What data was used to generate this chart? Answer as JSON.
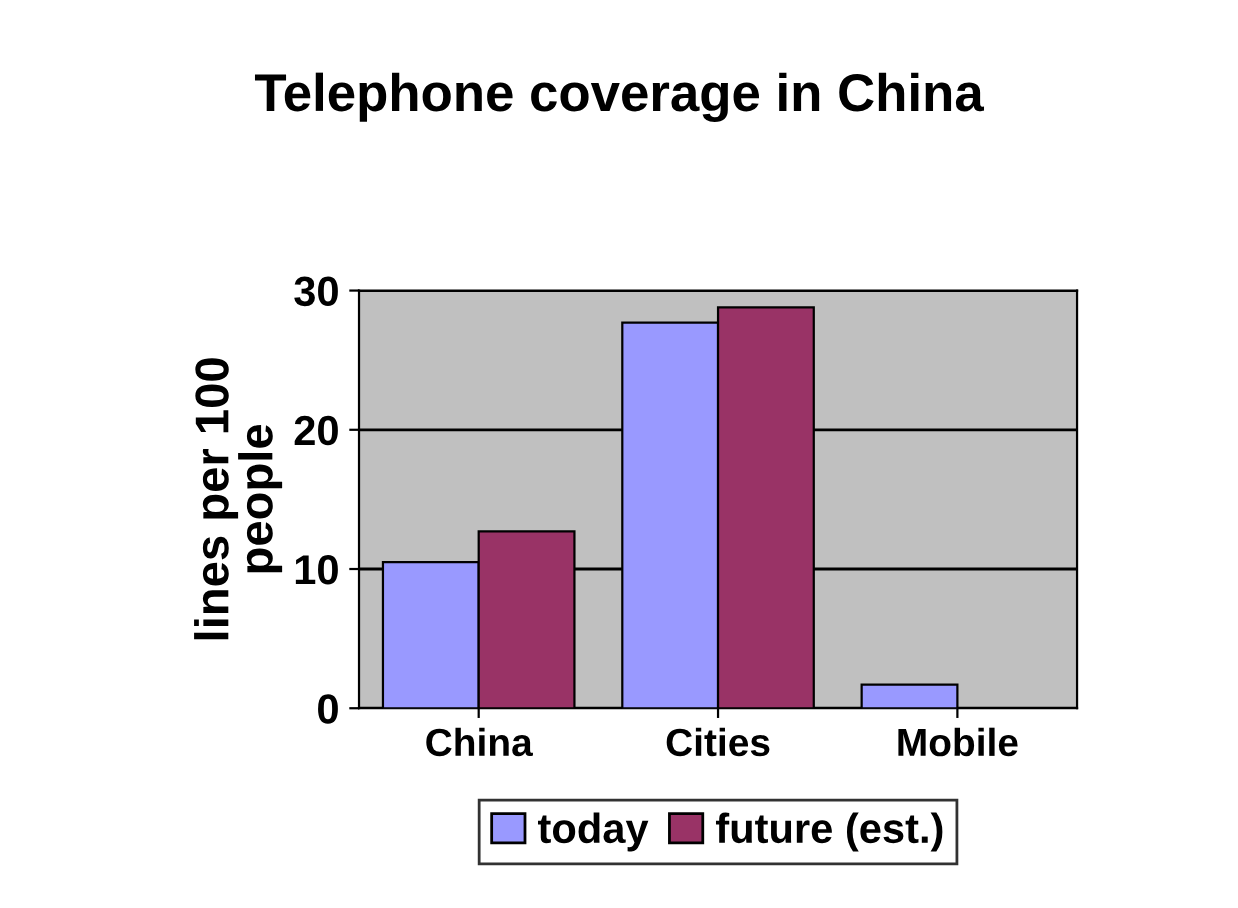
{
  "chart_data": {
    "type": "bar",
    "title": "Telephone coverage in China",
    "ylabel": "lines per 100\npeople",
    "categories": [
      "China",
      "Cities",
      "Mobile"
    ],
    "series": [
      {
        "name": "today",
        "color": "#9999ff",
        "values": [
          10.5,
          27.7,
          1.7
        ]
      },
      {
        "name": "future (est.)",
        "color": "#993366",
        "values": [
          12.7,
          28.8,
          null
        ]
      }
    ],
    "ylim": [
      0,
      30
    ],
    "yticks": [
      0,
      10,
      20,
      30
    ],
    "grid": "y",
    "legend": "bottom"
  }
}
